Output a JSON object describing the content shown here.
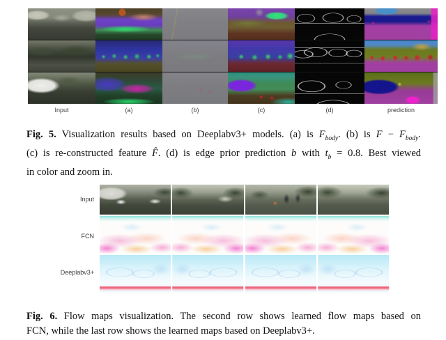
{
  "figure5": {
    "column_labels": [
      "Input",
      "(a)",
      "(b)",
      "(c)",
      "(d)",
      "prediction"
    ],
    "caption": {
      "tag": "Fig. 5.",
      "line1": {
        "s1": " Visualization results based on Deeplabv3+ models. (a) is ",
        "f1": "F",
        "f1sub": "body",
        "s2": ". (b) is ",
        "f2": "F",
        "s3": " − ",
        "f3": "F",
        "f3sub": "body",
        "s4": "."
      },
      "line2": {
        "s1": "(c) is re-constructed feature ",
        "fhat": "F̂",
        "s2": ". (d) is edge prior prediction ",
        "b": "b",
        "s3": " with ",
        "t": "t",
        "tsub": "b",
        "s4": " = 0.8. Best viewed"
      },
      "line3": "in color and zoom in."
    }
  },
  "figure6": {
    "row_labels": [
      "Input",
      "FCN",
      "Deeplabv3+"
    ],
    "caption": {
      "tag": "Fig. 6.",
      "line1": " Flow maps visualization. The second row shows learned flow maps based on",
      "line2": "FCN, while the last row shows the learned maps based on Deeplabv3+."
    }
  },
  "colors": {
    "page_background": "#ffffff",
    "edge_panel_black": "#060606",
    "residual_panel_gray": "#7f7f83",
    "prediction_road_magenta": "#a040a0",
    "prediction_car_navy": "#1a1a8c",
    "prediction_vegetation_olive": "#6b7a1e",
    "prediction_person_red": "#e01030",
    "feature_purple": "#6a3cbe",
    "feature_green": "#2ee87a",
    "fcn_flow_pink": "#f4aad2",
    "fcn_flow_cyan": "#78e0d6",
    "deeplab_flow_cyan": "#aae4f4",
    "deeplab_flow_blue": "#5a96e1",
    "deeplab_flow_red_line": "#ee4260"
  }
}
